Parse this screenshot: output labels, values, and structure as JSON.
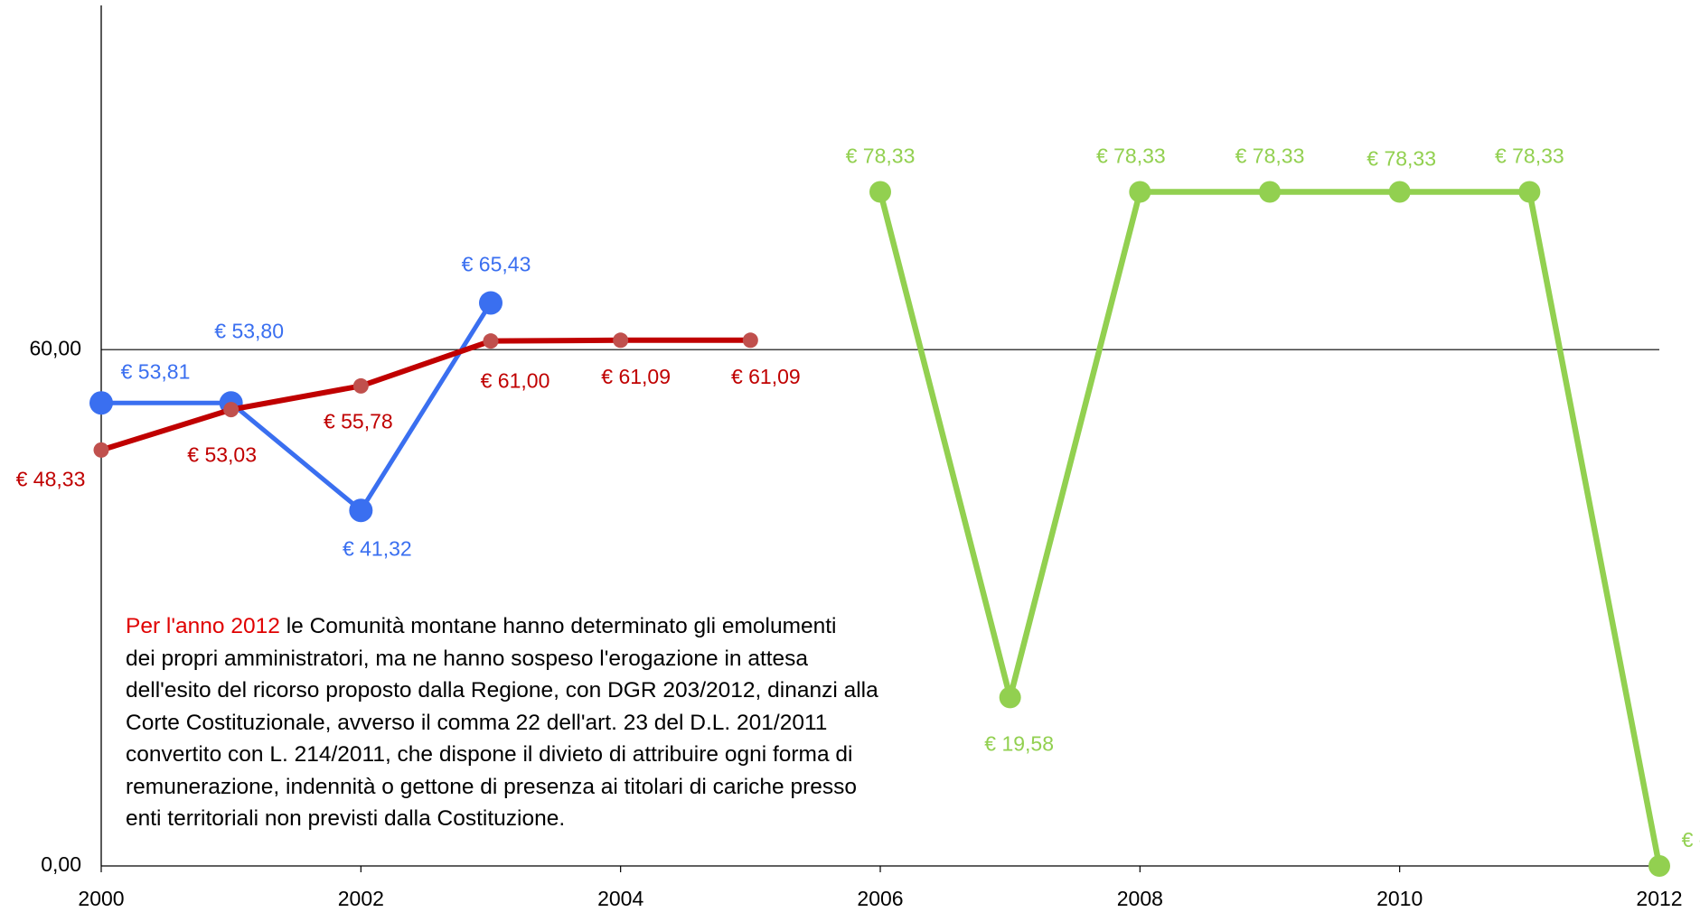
{
  "chart_data": {
    "type": "line",
    "xlim": [
      2000,
      2012
    ],
    "xticks": [
      2000,
      2002,
      2004,
      2006,
      2008,
      2010,
      2012
    ],
    "ylim": [
      0,
      100
    ],
    "yticks": [
      {
        "value": 0,
        "label": "0,00"
      },
      {
        "value": 60,
        "label": "60,00"
      }
    ],
    "grid": true,
    "series": [
      {
        "name": null,
        "color": "#3a6ff0",
        "x": [
          2000,
          2001,
          2002,
          2003
        ],
        "values": [
          53.81,
          53.8,
          41.32,
          65.43
        ],
        "value_labels": [
          "€ 53,81",
          "€ 53,80",
          "€ 41,32",
          "€ 65,43"
        ]
      },
      {
        "name": null,
        "color": "#c00000",
        "marker_color": "#c0504d",
        "x": [
          2000,
          2001,
          2002,
          2003,
          2004,
          2005
        ],
        "values": [
          48.33,
          53.03,
          55.78,
          61.0,
          61.09,
          61.09
        ],
        "value_labels": [
          "€ 48,33",
          "€ 53,03",
          "€ 55,78",
          "€ 61,00",
          "€ 61,09",
          "€ 61,09"
        ]
      },
      {
        "name": null,
        "color": "#92d050",
        "x": [
          2006,
          2007,
          2008,
          2009,
          2010,
          2011,
          2012
        ],
        "values": [
          78.33,
          19.58,
          78.33,
          78.33,
          78.33,
          78.33,
          0
        ],
        "value_labels": [
          "€ 78,33",
          "€ 19,58",
          "€ 78,33",
          "€ 78,33",
          "€ 78,33",
          "€ 78,33",
          "€ -"
        ]
      }
    ],
    "annotation": {
      "highlight": "Per l'anno 2012",
      "lines": [
        "le Comunità montane hanno determinato gli emolumenti",
        "dei propri amministratori, ma ne hanno sospeso l'erogazione in attesa",
        "dell'esito del ricorso proposto dalla Regione, con DGR 203/2012, dinanzi alla",
        "Corte Costituzionale, avverso il comma 22 dell'art. 23 del D.L. 201/2011",
        "convertito con L. 214/2011, che dispone il divieto di attribuire ogni forma di",
        "remunerazione, indennità o gettone di presenza ai titolari di cariche presso",
        "enti territoriali non previsti dalla Costituzione."
      ]
    }
  }
}
